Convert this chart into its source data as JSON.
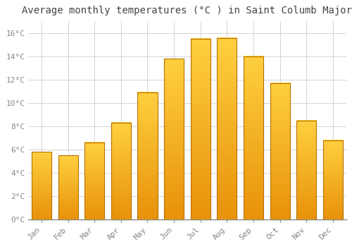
{
  "title": "Average monthly temperatures (°C ) in Saint Columb Major",
  "months": [
    "Jan",
    "Feb",
    "Mar",
    "Apr",
    "May",
    "Jun",
    "Jul",
    "Aug",
    "Sep",
    "Oct",
    "Nov",
    "Dec"
  ],
  "values": [
    5.8,
    5.5,
    6.6,
    8.3,
    10.9,
    13.8,
    15.5,
    15.6,
    14.0,
    11.7,
    8.5,
    6.8
  ],
  "bar_color_bottom": "#E8920A",
  "bar_color_top": "#FFD040",
  "bar_edge_color": "#B87000",
  "ylim": [
    0,
    17
  ],
  "yticks": [
    0,
    2,
    4,
    6,
    8,
    10,
    12,
    14,
    16
  ],
  "ytick_labels": [
    "0°C",
    "2°C",
    "4°C",
    "6°C",
    "8°C",
    "10°C",
    "12°C",
    "14°C",
    "16°C"
  ],
  "background_color": "#FFFFFF",
  "plot_bg_color": "#FFFFFF",
  "grid_color": "#CCCCCC",
  "title_fontsize": 10,
  "tick_fontsize": 8,
  "tick_color": "#888888",
  "bar_width": 0.75
}
